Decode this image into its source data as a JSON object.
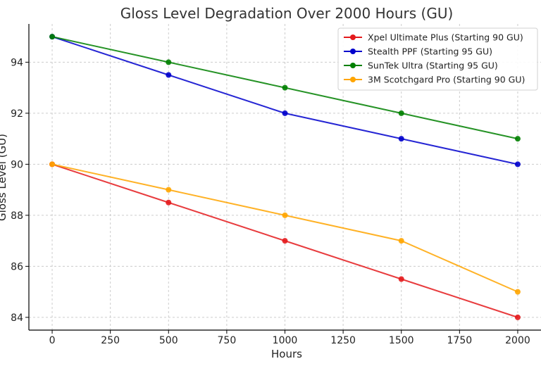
{
  "chart_data": {
    "type": "line",
    "title": "Gloss Level Degradation Over 2000 Hours (GU)",
    "xlabel": "Hours",
    "ylabel": "Gloss Level (GU)",
    "x": [
      0,
      500,
      1000,
      1500,
      2000
    ],
    "xlim": [
      -100,
      2100
    ],
    "ylim": [
      83.5,
      95.5
    ],
    "xticks": [
      0,
      250,
      500,
      750,
      1000,
      1250,
      1500,
      1750,
      2000
    ],
    "yticks": [
      84,
      86,
      88,
      90,
      92,
      94
    ],
    "grid": true,
    "legend_position": "top-right",
    "series": [
      {
        "name": "Xpel Ultimate Plus (Starting 90 GU)",
        "color": "#e41a1c",
        "values": [
          90,
          88.5,
          87,
          85.5,
          84
        ]
      },
      {
        "name": "Stealth PPF (Starting 95 GU)",
        "color": "#0000cc",
        "values": [
          95,
          93.5,
          92,
          91,
          90
        ]
      },
      {
        "name": "SunTek Ultra (Starting 95 GU)",
        "color": "#008000",
        "values": [
          95,
          94,
          93,
          92,
          91
        ]
      },
      {
        "name": "3M Scotchgard Pro (Starting 90 GU)",
        "color": "#ffa500",
        "values": [
          90,
          89,
          88,
          87,
          85
        ]
      }
    ]
  }
}
